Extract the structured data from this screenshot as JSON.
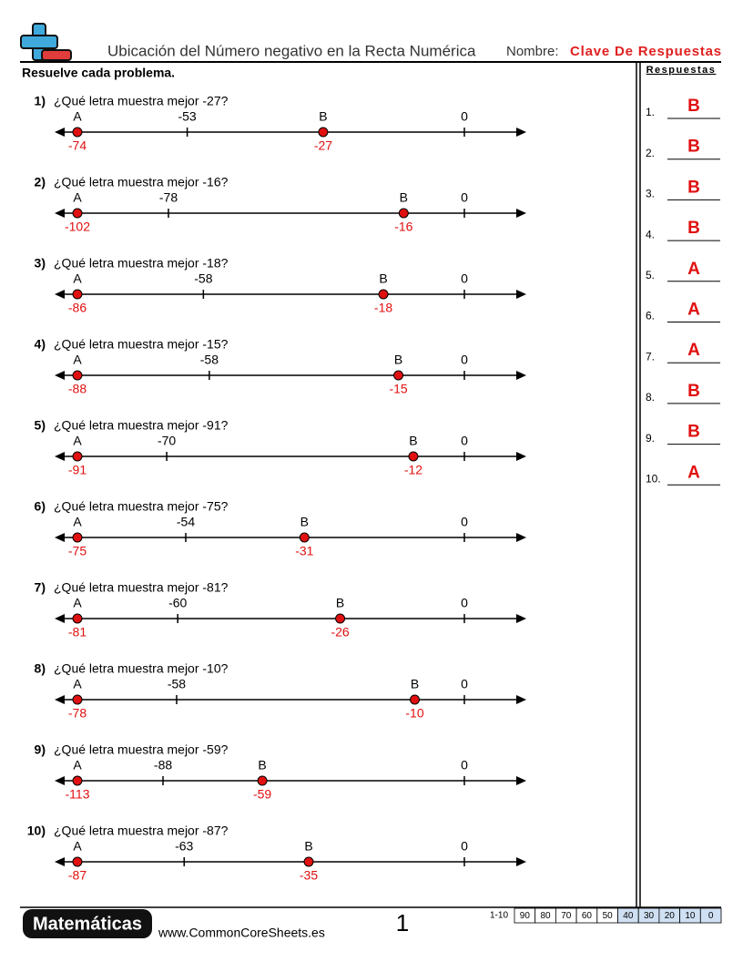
{
  "header": {
    "title": "Ubicación del Número negativo en la Recta Numérica",
    "name_label": "Nombre:",
    "name_value": "Clave De Respuestas"
  },
  "instructions": "Resuelve cada problema.",
  "answers_title": "Respuestas",
  "problems": [
    {
      "number": "1)",
      "question": "¿Qué letra muestra mejor -27?",
      "ticks": [
        -53,
        0
      ],
      "points": [
        {
          "letter": "A",
          "value": -74
        },
        {
          "letter": "B",
          "value": -27
        }
      ]
    },
    {
      "number": "2)",
      "question": "¿Qué letra muestra mejor -16?",
      "ticks": [
        -78,
        0
      ],
      "points": [
        {
          "letter": "A",
          "value": -102
        },
        {
          "letter": "B",
          "value": -16
        }
      ]
    },
    {
      "number": "3)",
      "question": "¿Qué letra muestra mejor -18?",
      "ticks": [
        -58,
        0
      ],
      "points": [
        {
          "letter": "A",
          "value": -86
        },
        {
          "letter": "B",
          "value": -18
        }
      ]
    },
    {
      "number": "4)",
      "question": "¿Qué letra muestra mejor -15?",
      "ticks": [
        -58,
        0
      ],
      "points": [
        {
          "letter": "A",
          "value": -88
        },
        {
          "letter": "B",
          "value": -15
        }
      ]
    },
    {
      "number": "5)",
      "question": "¿Qué letra muestra mejor -91?",
      "ticks": [
        -70,
        0
      ],
      "points": [
        {
          "letter": "A",
          "value": -91
        },
        {
          "letter": "B",
          "value": -12
        }
      ]
    },
    {
      "number": "6)",
      "question": "¿Qué letra muestra mejor -75?",
      "ticks": [
        -54,
        0
      ],
      "points": [
        {
          "letter": "A",
          "value": -75
        },
        {
          "letter": "B",
          "value": -31
        }
      ]
    },
    {
      "number": "7)",
      "question": "¿Qué letra muestra mejor -81?",
      "ticks": [
        -60,
        0
      ],
      "points": [
        {
          "letter": "A",
          "value": -81
        },
        {
          "letter": "B",
          "value": -26
        }
      ]
    },
    {
      "number": "8)",
      "question": "¿Qué letra muestra mejor -10?",
      "ticks": [
        -58,
        0
      ],
      "points": [
        {
          "letter": "A",
          "value": -78
        },
        {
          "letter": "B",
          "value": -10
        }
      ]
    },
    {
      "number": "9)",
      "question": "¿Qué letra muestra mejor -59?",
      "ticks": [
        -88,
        0
      ],
      "points": [
        {
          "letter": "A",
          "value": -113
        },
        {
          "letter": "B",
          "value": -59
        }
      ]
    },
    {
      "number": "10)",
      "question": "¿Qué letra muestra mejor -87?",
      "ticks": [
        -63,
        0
      ],
      "points": [
        {
          "letter": "A",
          "value": -87
        },
        {
          "letter": "B",
          "value": -35
        }
      ]
    }
  ],
  "answers": [
    {
      "number": "1.",
      "answer": "B"
    },
    {
      "number": "2.",
      "answer": "B"
    },
    {
      "number": "3.",
      "answer": "B"
    },
    {
      "number": "4.",
      "answer": "B"
    },
    {
      "number": "5.",
      "answer": "A"
    },
    {
      "number": "6.",
      "answer": "A"
    },
    {
      "number": "7.",
      "answer": "A"
    },
    {
      "number": "8.",
      "answer": "B"
    },
    {
      "number": "9.",
      "answer": "B"
    },
    {
      "number": "10.",
      "answer": "A"
    }
  ],
  "footer": {
    "subject": "Matemáticas",
    "website": "www.CommonCoreSheets.es",
    "page": "1",
    "score_range": "1-10",
    "scores": [
      90,
      80,
      70,
      60,
      50,
      40,
      30,
      20,
      10,
      0
    ]
  }
}
